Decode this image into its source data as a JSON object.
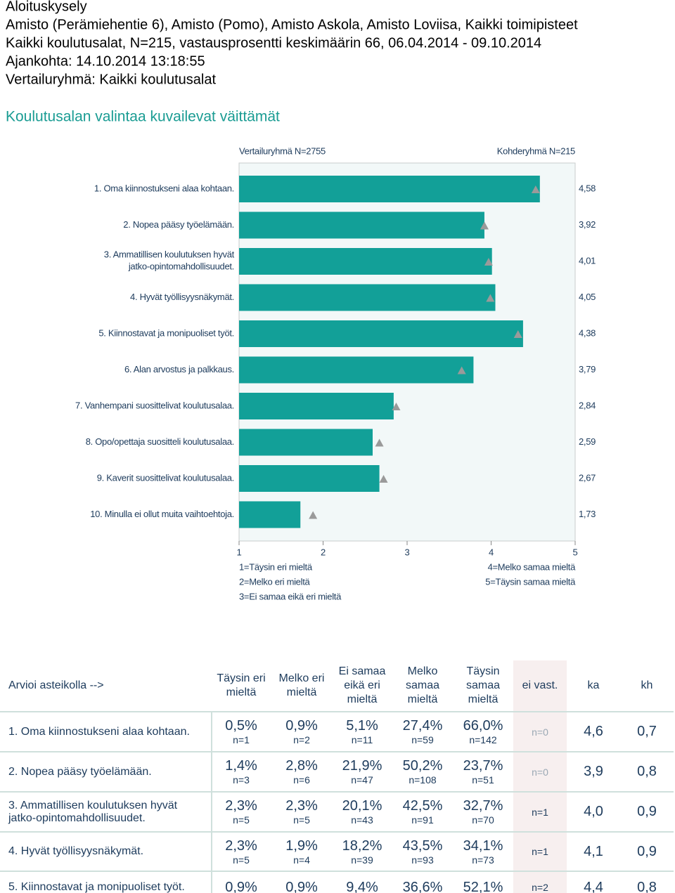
{
  "header": {
    "lines": [
      "Aloituskysely",
      "Amisto (Perämiehentie 6), Amisto (Pomo), Amisto Askola, Amisto Loviisa,   Kaikki toimipisteet",
      "Kaikki koulutusalat, N=215, vastausprosentti keskimäärin 66, 06.04.2014 - 09.10.2014",
      "Ajankohta: 14.10.2014 13:18:55",
      "Vertailuryhmä: Kaikki koulutusalat"
    ],
    "section_title": "Koulutusalan valintaa kuvailevat väittämät"
  },
  "chart_data": {
    "type": "bar",
    "orientation": "horizontal",
    "categories": [
      "1. Oma kiinnostukseni alaa kohtaan.",
      "2. Nopea pääsy työelämään.",
      "3. Ammatillisen koulutuksen hyvät\njatko-opintomahdollisuudet.",
      "4. Hyvät työllisyysnäkymät.",
      "5. Kiinnostavat ja monipuoliset työt.",
      "6. Alan arvostus ja palkkaus.",
      "7. Vanhempani suosittelivat koulutusalaa.",
      "8. Opo/opettaja suositteli koulutusalaa.",
      "9. Kaverit suosittelivat koulutusalaa.",
      "10. Minulla ei ollut muita vaihtoehtoja."
    ],
    "series": [
      {
        "name": "Kohderyhmä N=215",
        "color": "#12a098",
        "marker": "bar",
        "values": [
          4.58,
          3.92,
          4.01,
          4.05,
          4.38,
          3.79,
          2.84,
          2.59,
          2.67,
          1.73
        ],
        "value_labels": [
          "4,58",
          "3,92",
          "4,01",
          "4,05",
          "4,38",
          "3,79",
          "2,84",
          "2,59",
          "2,67",
          "1,73"
        ]
      },
      {
        "name": "Vertailuryhmä N=2755",
        "color": "#9a9a9a",
        "marker": "triangle",
        "values": [
          4.53,
          3.92,
          3.97,
          3.99,
          4.32,
          3.65,
          2.87,
          2.67,
          2.72,
          1.88
        ]
      }
    ],
    "xlim": [
      1,
      5
    ],
    "xticks": [
      1,
      2,
      3,
      4,
      5
    ],
    "scale_legend": [
      "1=Täysin eri mieltä",
      "2=Melko eri mieltä",
      "3=Ei samaa eikä eri mieltä",
      "4=Melko samaa mieltä",
      "5=Täysin samaa mieltä"
    ]
  },
  "table": {
    "scale_label": "Arvioi asteikolla -->",
    "headers": [
      "Täysin eri mieltä",
      "Melko eri mieltä",
      "Ei samaa eikä eri mieltä",
      "Melko samaa mieltä",
      "Täysin samaa mieltä",
      "ei vast.",
      "ka",
      "kh"
    ],
    "rows": [
      {
        "label": "1. Oma kiinnostukseni alaa kohtaan.",
        "cells": [
          {
            "pct": "0,5%",
            "n": "n=1"
          },
          {
            "pct": "0,9%",
            "n": "n=2"
          },
          {
            "pct": "5,1%",
            "n": "n=11"
          },
          {
            "pct": "27,4%",
            "n": "n=59"
          },
          {
            "pct": "66,0%",
            "n": "n=142"
          }
        ],
        "no_answer": "n=0",
        "ka": "4,6",
        "kh": "0,7"
      },
      {
        "label": "2. Nopea pääsy työelämään.",
        "cells": [
          {
            "pct": "1,4%",
            "n": "n=3"
          },
          {
            "pct": "2,8%",
            "n": "n=6"
          },
          {
            "pct": "21,9%",
            "n": "n=47"
          },
          {
            "pct": "50,2%",
            "n": "n=108"
          },
          {
            "pct": "23,7%",
            "n": "n=51"
          }
        ],
        "no_answer": "n=0",
        "ka": "3,9",
        "kh": "0,8"
      },
      {
        "label": "3. Ammatillisen koulutuksen hyvät\njatko-opintomahdollisuudet.",
        "cells": [
          {
            "pct": "2,3%",
            "n": "n=5"
          },
          {
            "pct": "2,3%",
            "n": "n=5"
          },
          {
            "pct": "20,1%",
            "n": "n=43"
          },
          {
            "pct": "42,5%",
            "n": "n=91"
          },
          {
            "pct": "32,7%",
            "n": "n=70"
          }
        ],
        "no_answer": "n=1",
        "ka": "4,0",
        "kh": "0,9"
      },
      {
        "label": "4. Hyvät työllisyysnäkymät.",
        "cells": [
          {
            "pct": "2,3%",
            "n": "n=5"
          },
          {
            "pct": "1,9%",
            "n": "n=4"
          },
          {
            "pct": "18,2%",
            "n": "n=39"
          },
          {
            "pct": "43,5%",
            "n": "n=93"
          },
          {
            "pct": "34,1%",
            "n": "n=73"
          }
        ],
        "no_answer": "n=1",
        "ka": "4,1",
        "kh": "0,9"
      },
      {
        "label": "5. Kiinnostavat ja monipuoliset työt.",
        "cells": [
          {
            "pct": "0,9%"
          },
          {
            "pct": "0,9%"
          },
          {
            "pct": "9,4%"
          },
          {
            "pct": "36,6%"
          },
          {
            "pct": "52,1%"
          }
        ],
        "no_answer": "n=2",
        "ka": "4,4",
        "kh": "0,8"
      }
    ]
  }
}
